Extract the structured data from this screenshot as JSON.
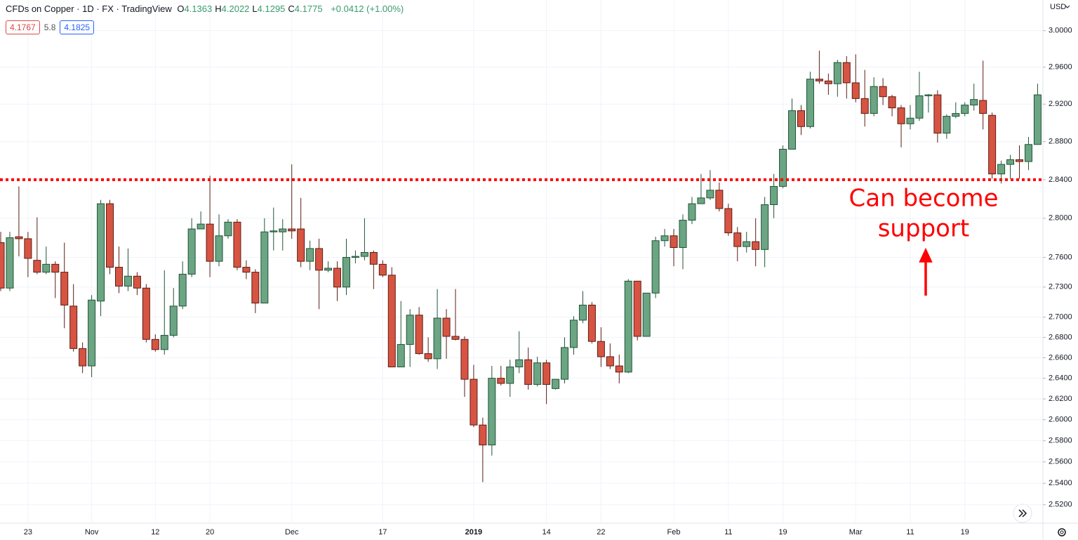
{
  "chart_data": {
    "type": "candlestick",
    "title": "CFDs on Copper · 1D · FX · TradingView",
    "ohlc_legend": [
      {
        "label": "O",
        "value": 4.1363
      },
      {
        "label": "H",
        "value": 4.2022
      },
      {
        "label": "L",
        "value": 4.1295
      },
      {
        "label": "C",
        "value": 4.1775
      }
    ],
    "change": "+0.0412 (+1.00%)",
    "quote": {
      "bid": 4.1767,
      "spread": 5.8,
      "ask": 4.1825
    },
    "y_axis_label": "USD",
    "annotation": [
      "Can become",
      "support"
    ],
    "annotation_color": "#ff0000",
    "level": {
      "value": 2.84,
      "color": "#ff0000"
    },
    "up_color": "#6ba583",
    "down_color": "#d75442",
    "log_scale": true,
    "grid": true,
    "ylim": [
      2.503,
      3.034
    ],
    "yticks": [
      {
        "value": 3.0,
        "label": "3.0000"
      },
      {
        "value": 2.96,
        "label": "2.9600"
      },
      {
        "value": 2.92,
        "label": "2.9200"
      },
      {
        "value": 2.88,
        "label": "2.8800"
      },
      {
        "value": 2.84,
        "label": "2.8400"
      },
      {
        "value": 2.8,
        "label": "2.8000"
      },
      {
        "value": 2.76,
        "label": "2.7600"
      },
      {
        "value": 2.73,
        "label": "2.7300"
      },
      {
        "value": 2.7,
        "label": "2.7000"
      },
      {
        "value": 2.68,
        "label": "2.6800"
      },
      {
        "value": 2.66,
        "label": "2.6600"
      },
      {
        "value": 2.64,
        "label": "2.6400"
      },
      {
        "value": 2.62,
        "label": "2.6200"
      },
      {
        "value": 2.6,
        "label": "2.6000"
      },
      {
        "value": 2.58,
        "label": "2.5800"
      },
      {
        "value": 2.56,
        "label": "2.5600"
      },
      {
        "value": 2.54,
        "label": "2.5400"
      },
      {
        "value": 2.52,
        "label": "2.5200"
      }
    ],
    "categories": [
      null,
      null,
      null,
      "23",
      null,
      null,
      null,
      null,
      null,
      null,
      "Nov",
      null,
      null,
      null,
      null,
      null,
      null,
      "12",
      null,
      null,
      null,
      null,
      null,
      "20",
      null,
      null,
      null,
      null,
      null,
      null,
      null,
      null,
      "Dec",
      null,
      null,
      null,
      null,
      null,
      null,
      null,
      null,
      null,
      "17",
      null,
      null,
      null,
      null,
      null,
      null,
      null,
      null,
      null,
      "2019",
      null,
      null,
      null,
      null,
      null,
      null,
      null,
      "14",
      null,
      null,
      null,
      null,
      null,
      "22",
      null,
      null,
      null,
      null,
      null,
      null,
      null,
      "Feb",
      null,
      null,
      null,
      null,
      null,
      "11",
      null,
      null,
      null,
      null,
      null,
      "19",
      null,
      null,
      null,
      null,
      null,
      null,
      null,
      "Mar",
      null,
      null,
      null,
      null,
      null,
      "11",
      null,
      null,
      null,
      null,
      null,
      "19",
      null,
      null,
      null,
      null,
      null,
      null,
      null,
      null
    ],
    "open": [
      2.775,
      2.729,
      2.781,
      2.779,
      2.757,
      2.745,
      2.753,
      2.745,
      2.711,
      2.669,
      2.652,
      2.716,
      2.815,
      2.75,
      2.731,
      2.741,
      2.729,
      2.678,
      2.668,
      2.682,
      2.711,
      2.743,
      2.789,
      2.794,
      2.756,
      2.782,
      2.796,
      2.75,
      2.745,
      2.714,
      2.786,
      2.786,
      2.789,
      2.789,
      2.756,
      2.769,
      2.747,
      2.749,
      2.73,
      2.76,
      2.761,
      2.765,
      2.753,
      2.742,
      2.651,
      2.673,
      2.702,
      2.664,
      2.659,
      2.699,
      2.681,
      2.678,
      2.639,
      2.595,
      2.576,
      2.64,
      2.635,
      2.651,
      2.658,
      2.634,
      2.655,
      2.63,
      2.639,
      2.67,
      2.697,
      2.712,
      2.676,
      2.661,
      2.652,
      2.646,
      2.736,
      2.681,
      2.724,
      2.777,
      2.782,
      2.77,
      2.798,
      2.815,
      2.821,
      2.829,
      2.81,
      2.785,
      2.771,
      2.776,
      2.768,
      2.814,
      2.833,
      2.872,
      2.913,
      2.896,
      2.947,
      2.945,
      2.942,
      2.965,
      2.943,
      2.926,
      2.91,
      2.939,
      2.928,
      2.916,
      2.899,
      2.905,
      2.929,
      2.93,
      2.889,
      2.907,
      2.91,
      2.919,
      2.924,
      2.908,
      2.846,
      2.856,
      2.861,
      2.859,
      2.877
    ],
    "high": [
      2.786,
      2.786,
      2.833,
      2.786,
      2.801,
      2.771,
      2.756,
      2.775,
      2.733,
      2.675,
      2.722,
      2.819,
      2.819,
      2.771,
      2.769,
      2.745,
      2.733,
      2.683,
      2.747,
      2.729,
      2.756,
      2.8,
      2.807,
      2.844,
      2.804,
      2.799,
      2.799,
      2.757,
      2.748,
      2.8,
      2.811,
      2.799,
      2.856,
      2.821,
      2.777,
      2.779,
      2.756,
      2.756,
      2.779,
      2.767,
      2.8,
      2.767,
      2.757,
      2.75,
      2.716,
      2.708,
      2.71,
      2.68,
      2.728,
      2.708,
      2.728,
      2.681,
      2.653,
      2.602,
      2.652,
      2.652,
      2.658,
      2.686,
      2.67,
      2.661,
      2.658,
      2.639,
      2.68,
      2.701,
      2.726,
      2.715,
      2.69,
      2.674,
      2.663,
      2.738,
      2.736,
      2.724,
      2.781,
      2.789,
      2.789,
      2.804,
      2.822,
      2.846,
      2.85,
      2.837,
      2.815,
      2.791,
      2.786,
      2.8,
      2.822,
      2.846,
      2.876,
      2.926,
      2.919,
      2.955,
      2.978,
      2.953,
      2.968,
      2.972,
      2.974,
      2.957,
      2.949,
      2.948,
      2.93,
      2.919,
      2.919,
      2.955,
      2.931,
      2.935,
      2.909,
      2.922,
      2.922,
      2.942,
      2.967,
      2.911,
      2.86,
      2.866,
      2.876,
      2.885,
      2.942
    ],
    "low": [
      2.726,
      2.726,
      2.761,
      2.74,
      2.743,
      2.743,
      2.719,
      2.689,
      2.666,
      2.645,
      2.641,
      2.701,
      2.743,
      2.724,
      2.726,
      2.722,
      2.675,
      2.666,
      2.663,
      2.68,
      2.708,
      2.74,
      2.789,
      2.74,
      2.751,
      2.779,
      2.747,
      2.738,
      2.704,
      2.714,
      2.767,
      2.767,
      2.779,
      2.75,
      2.747,
      2.708,
      2.745,
      2.716,
      2.722,
      2.754,
      2.757,
      2.728,
      2.74,
      2.651,
      2.651,
      2.651,
      2.663,
      2.656,
      2.649,
      2.659,
      2.677,
      2.622,
      2.593,
      2.541,
      2.566,
      2.633,
      2.622,
      2.645,
      2.629,
      2.632,
      2.615,
      2.629,
      2.635,
      2.663,
      2.694,
      2.674,
      2.651,
      2.649,
      2.635,
      2.645,
      2.677,
      2.681,
      2.719,
      2.771,
      2.751,
      2.748,
      2.794,
      2.815,
      2.819,
      2.807,
      2.782,
      2.756,
      2.765,
      2.751,
      2.75,
      2.8,
      2.831,
      2.872,
      2.887,
      2.894,
      2.942,
      2.93,
      2.928,
      2.926,
      2.922,
      2.896,
      2.907,
      2.919,
      2.907,
      2.874,
      2.893,
      2.902,
      2.911,
      2.879,
      2.883,
      2.905,
      2.907,
      2.913,
      2.893,
      2.841,
      2.836,
      2.841,
      2.841,
      2.85,
      2.877
    ],
    "close": [
      2.729,
      2.78,
      2.779,
      2.759,
      2.745,
      2.753,
      2.745,
      2.712,
      2.669,
      2.652,
      2.717,
      2.815,
      2.75,
      2.731,
      2.741,
      2.729,
      2.678,
      2.668,
      2.682,
      2.711,
      2.743,
      2.789,
      2.794,
      2.756,
      2.782,
      2.796,
      2.75,
      2.745,
      2.714,
      2.786,
      2.787,
      2.789,
      2.787,
      2.756,
      2.769,
      2.747,
      2.749,
      2.73,
      2.76,
      2.761,
      2.765,
      2.753,
      2.742,
      2.651,
      2.673,
      2.702,
      2.664,
      2.659,
      2.699,
      2.681,
      2.678,
      2.639,
      2.595,
      2.576,
      2.64,
      2.635,
      2.651,
      2.658,
      2.634,
      2.655,
      2.634,
      2.639,
      2.67,
      2.697,
      2.712,
      2.676,
      2.661,
      2.652,
      2.646,
      2.736,
      2.681,
      2.724,
      2.777,
      2.782,
      2.77,
      2.798,
      2.815,
      2.821,
      2.829,
      2.81,
      2.785,
      2.771,
      2.776,
      2.768,
      2.814,
      2.833,
      2.872,
      2.913,
      2.896,
      2.947,
      2.945,
      2.942,
      2.965,
      2.943,
      2.926,
      2.91,
      2.939,
      2.928,
      2.916,
      2.899,
      2.905,
      2.929,
      2.93,
      2.889,
      2.907,
      2.91,
      2.919,
      2.925,
      2.91,
      2.846,
      2.856,
      2.861,
      2.859,
      2.877,
      2.93
    ]
  }
}
